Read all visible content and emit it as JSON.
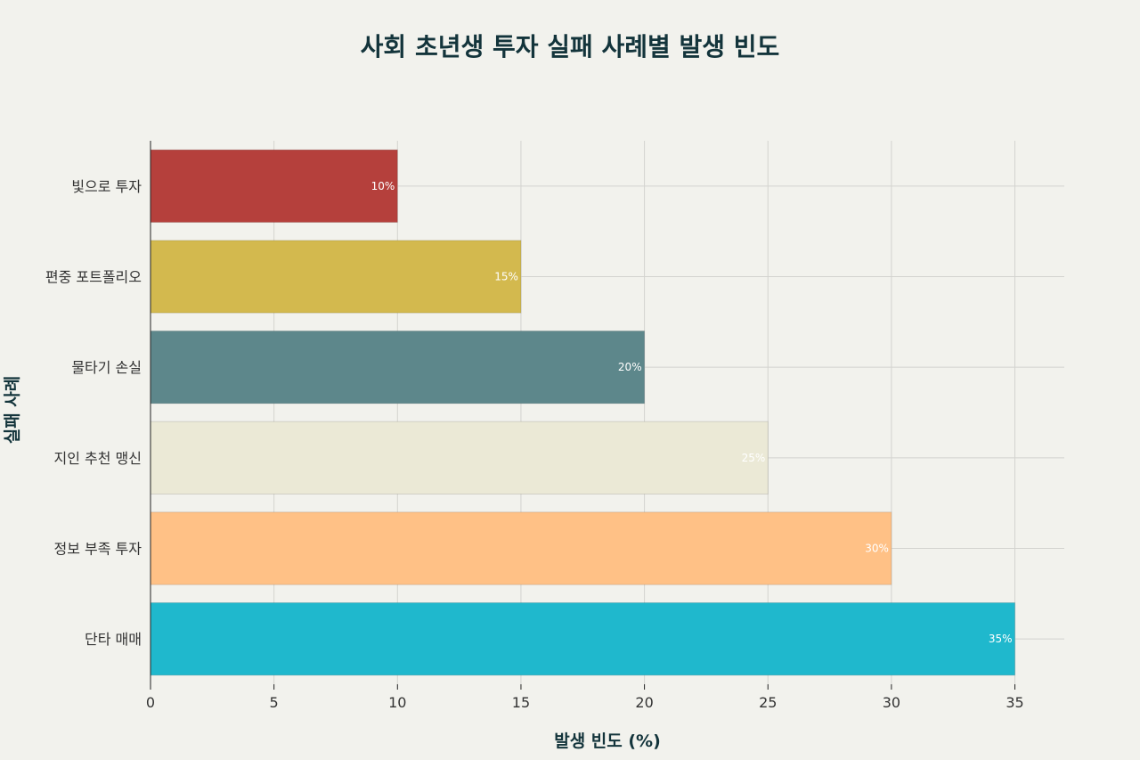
{
  "chart_data": {
    "type": "bar",
    "orientation": "horizontal",
    "title": "사회 초년생 투자 실패 사례별 발생 빈도",
    "xlabel": "발생 빈도 (%)",
    "ylabel": "실패 사례",
    "categories": [
      "빛으로 투자",
      "편중 포트폴리오",
      "물타기 손실",
      "지인 추천 맹신",
      "정보 부족 투자",
      "단타 매매"
    ],
    "values": [
      10,
      15,
      20,
      25,
      30,
      35
    ],
    "data_labels": [
      "10%",
      "15%",
      "20%",
      "25%",
      "30%",
      "35%"
    ],
    "colors": [
      "#b5403c",
      "#d3b94e",
      "#5d878b",
      "#ebe9d6",
      "#ffc186",
      "#1fb8cd"
    ],
    "xlim": [
      0,
      37
    ],
    "xticks": [
      0,
      5,
      10,
      15,
      20,
      25,
      30,
      35
    ],
    "grid": true,
    "legend": "none"
  }
}
